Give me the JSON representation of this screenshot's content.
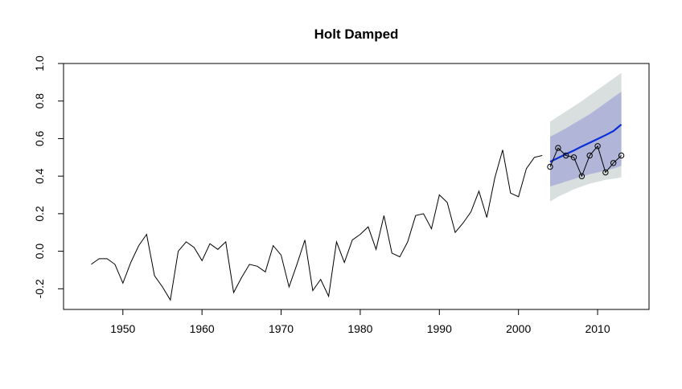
{
  "chart_data": {
    "type": "line",
    "title": "Holt Damped",
    "xlabel": "",
    "ylabel": "",
    "xlim": [
      1942.5,
      2016.5
    ],
    "ylim": [
      -0.31,
      1.0
    ],
    "x_ticks": [
      1950,
      1960,
      1970,
      1980,
      1990,
      2000,
      2010
    ],
    "y_ticks": [
      -0.2,
      0.0,
      0.2,
      0.4,
      0.6,
      0.8,
      1.0
    ],
    "x_tick_labels": [
      "1950",
      "1960",
      "1970",
      "1980",
      "1990",
      "2000",
      "2010"
    ],
    "y_tick_labels": [
      "-0.2",
      "0.0",
      "0.2",
      "0.4",
      "0.6",
      "0.8",
      "1.0"
    ],
    "grid": false,
    "colors": {
      "observed": "#000000",
      "forecast": "#0a2fd6",
      "band80": "#b1b6d8",
      "band95": "#d9dedf"
    },
    "series": [
      {
        "role": "observed",
        "x": [
          1946,
          1947,
          1948,
          1949,
          1950,
          1951,
          1952,
          1953,
          1954,
          1955,
          1956,
          1957,
          1958,
          1959,
          1960,
          1961,
          1962,
          1963,
          1964,
          1965,
          1966,
          1967,
          1968,
          1969,
          1970,
          1971,
          1972,
          1973,
          1974,
          1975,
          1976,
          1977,
          1978,
          1979,
          1980,
          1981,
          1982,
          1983,
          1984,
          1985,
          1986,
          1987,
          1988,
          1989,
          1990,
          1991,
          1992,
          1993,
          1994,
          1995,
          1996,
          1997,
          1998,
          1999,
          2000,
          2001,
          2002,
          2003
        ],
        "values": [
          -0.07,
          -0.04,
          -0.04,
          -0.07,
          -0.17,
          -0.06,
          0.03,
          0.09,
          -0.13,
          -0.19,
          -0.26,
          0.0,
          0.05,
          0.02,
          -0.05,
          0.04,
          0.01,
          0.05,
          -0.22,
          -0.14,
          -0.07,
          -0.08,
          -0.11,
          0.03,
          -0.02,
          -0.19,
          -0.07,
          0.06,
          -0.21,
          -0.15,
          -0.24,
          0.05,
          -0.06,
          0.06,
          0.09,
          0.13,
          0.01,
          0.19,
          -0.01,
          -0.03,
          0.05,
          0.19,
          0.2,
          0.12,
          0.3,
          0.26,
          0.1,
          0.15,
          0.21,
          0.32,
          0.18,
          0.39,
          0.54,
          0.31,
          0.29,
          0.44,
          0.5,
          0.51
        ]
      },
      {
        "role": "forecast",
        "x": [
          2004,
          2005,
          2006,
          2007,
          2008,
          2009,
          2010,
          2011,
          2012,
          2013
        ],
        "values": [
          0.477,
          0.497,
          0.517,
          0.537,
          0.558,
          0.578,
          0.598,
          0.618,
          0.64,
          0.675
        ],
        "lo80": [
          0.345,
          0.358,
          0.372,
          0.385,
          0.398,
          0.41,
          0.42,
          0.43,
          0.44,
          0.455
        ],
        "hi80": [
          0.61,
          0.632,
          0.655,
          0.68,
          0.705,
          0.73,
          0.76,
          0.79,
          0.82,
          0.85
        ],
        "lo95": [
          0.265,
          0.29,
          0.31,
          0.33,
          0.345,
          0.36,
          0.37,
          0.38,
          0.386,
          0.393
        ],
        "hi95": [
          0.69,
          0.718,
          0.745,
          0.772,
          0.8,
          0.83,
          0.86,
          0.89,
          0.92,
          0.95
        ]
      },
      {
        "role": "test",
        "x": [
          2004,
          2005,
          2006,
          2007,
          2008,
          2009,
          2010,
          2011,
          2012,
          2013
        ],
        "values": [
          0.45,
          0.55,
          0.51,
          0.5,
          0.4,
          0.51,
          0.56,
          0.42,
          0.47,
          0.51
        ]
      }
    ]
  }
}
